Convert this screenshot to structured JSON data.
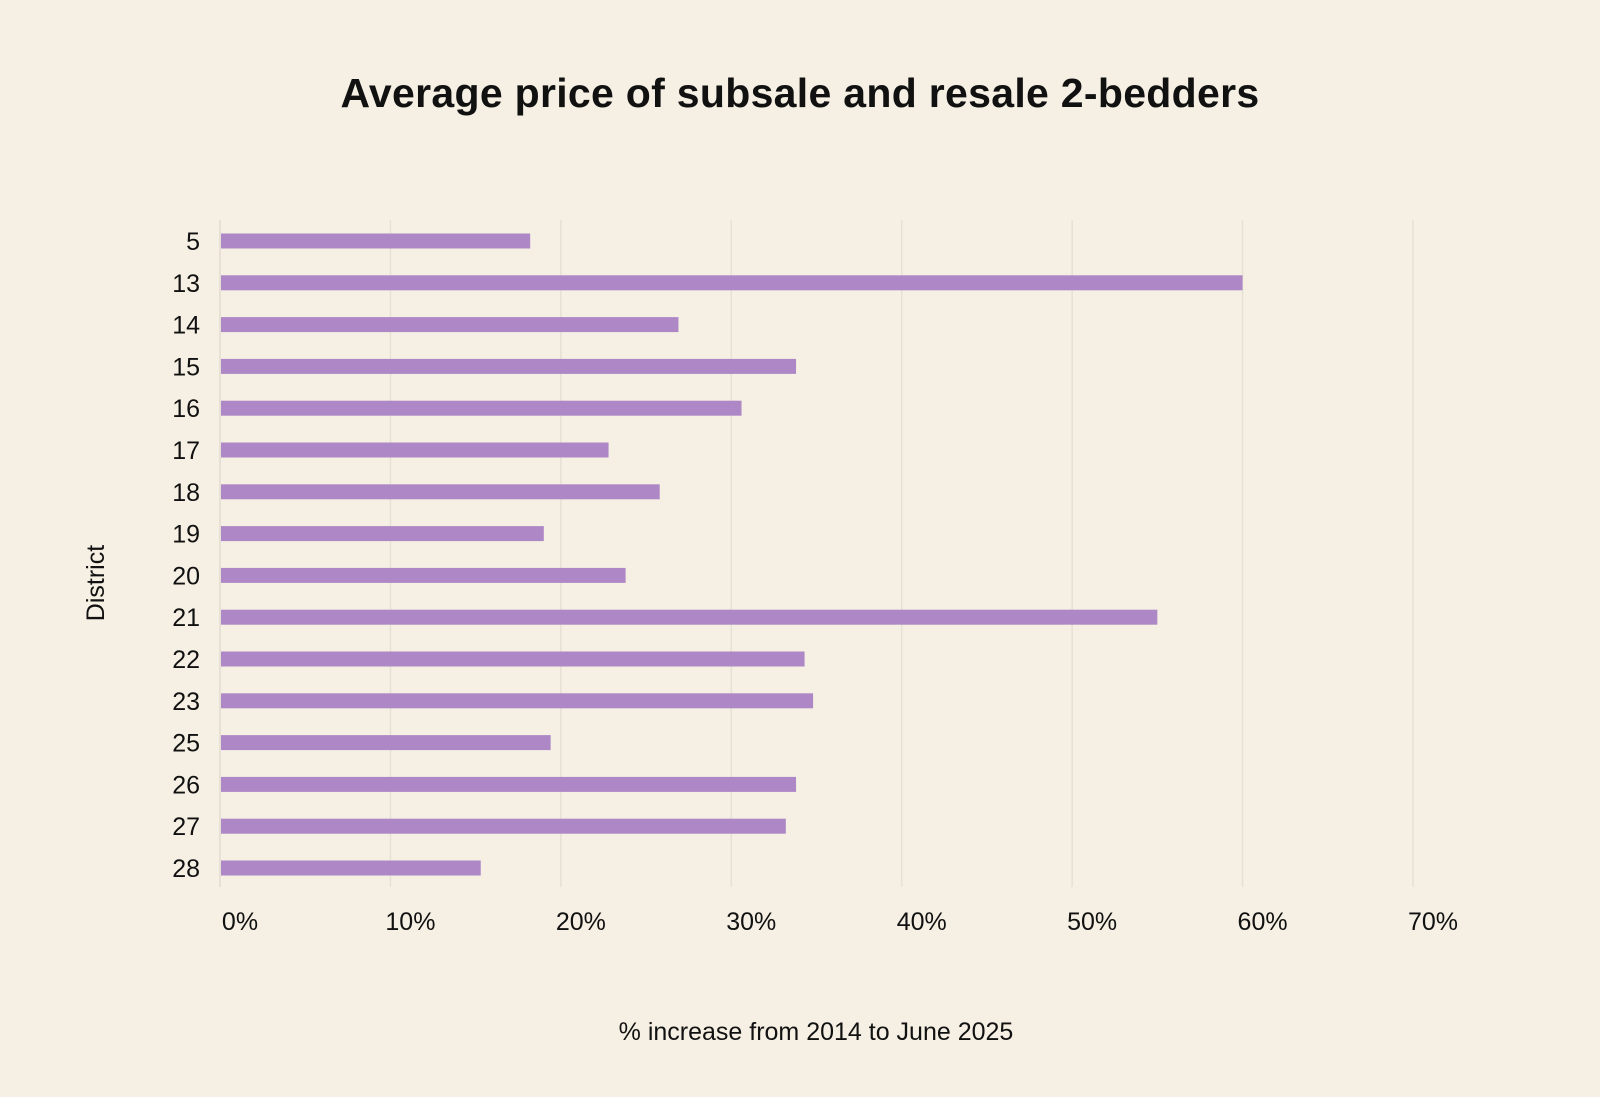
{
  "chart_data": {
    "type": "bar",
    "orientation": "horizontal",
    "title": "Average price of subsale and resale 2-bedders",
    "xlabel": "% increase from 2014 to June 2025",
    "ylabel": "District",
    "categories": [
      "5",
      "13",
      "14",
      "15",
      "16",
      "17",
      "18",
      "19",
      "20",
      "21",
      "22",
      "23",
      "25",
      "26",
      "27",
      "28"
    ],
    "values": [
      18.2,
      60.0,
      26.9,
      33.8,
      30.6,
      22.8,
      25.8,
      19.0,
      23.8,
      55.0,
      34.3,
      34.8,
      19.4,
      33.8,
      33.2,
      15.3
    ],
    "xlim": [
      0,
      70
    ],
    "xticks": [
      0,
      10,
      20,
      30,
      40,
      50,
      60,
      70
    ],
    "xtick_labels": [
      "0%",
      "10%",
      "20%",
      "30%",
      "40%",
      "50%",
      "60%",
      "70%"
    ],
    "grid": "vertical",
    "bar_color": "#ae88c6",
    "grid_color": "#e6e1d4"
  }
}
